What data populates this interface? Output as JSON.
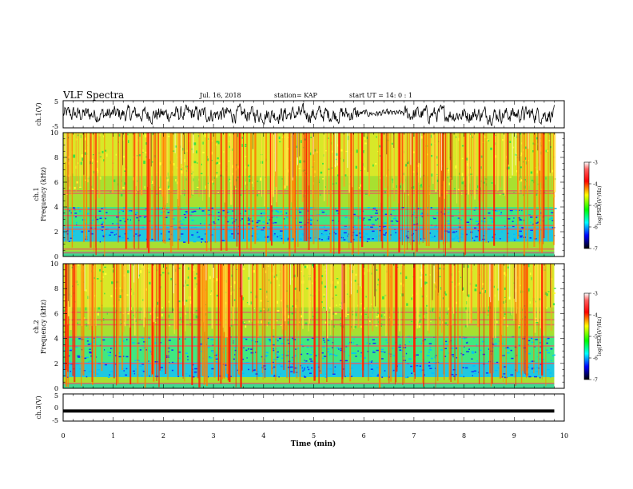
{
  "header": {
    "title": "VLF Spectra",
    "date": "Jul. 16, 2018",
    "station": "station= KAP",
    "start": "start UT =   14: 0  : 1"
  },
  "chart_data": [
    {
      "type": "line",
      "panel": "ch1-waveform",
      "ylabel": "ch.1(V)",
      "ylim": [
        -5,
        5
      ],
      "yticks": [
        "5",
        "-5"
      ],
      "xlim": [
        0,
        10
      ],
      "x_end": 9.8,
      "description_level": "noisy waveform roughly between -3 and 3 V, quieter near 6 min"
    },
    {
      "type": "heatmap",
      "panel": "ch1-spectrogram",
      "ylabel": "ch.1\nFrequency (kHz)",
      "ylabel_line1": "ch.1",
      "ylabel_line2": "Frequency (kHz)",
      "ylim": [
        0,
        10
      ],
      "yticks": [
        "0",
        "2",
        "4",
        "6",
        "8",
        "10"
      ],
      "xlim": [
        0,
        10
      ],
      "x_end": 9.8,
      "colorbar": {
        "label": "log(PSD)(V²/Hz)",
        "range": [
          -7,
          -3
        ],
        "ticks": [
          "-3",
          "-4",
          "-5",
          "-6",
          "-7"
        ],
        "colors": [
          "#ffffff",
          "#ff0000",
          "#ffff00",
          "#00ff00",
          "#00ffff",
          "#0000ff",
          "#000000"
        ]
      },
      "bands_khz": [
        0.3,
        0.6,
        2.2,
        2.5,
        3.3,
        3.8,
        5.1,
        5.3
      ],
      "lowpower_band_khz": [
        1.2,
        4.0
      ]
    },
    {
      "type": "heatmap",
      "panel": "ch2-spectrogram",
      "ylabel_line1": "ch.2",
      "ylabel_line2": "Frequency (kHz)",
      "ylim": [
        0,
        10
      ],
      "yticks": [
        "0",
        "2",
        "4",
        "6",
        "8",
        "10"
      ],
      "xlim": [
        0,
        10
      ],
      "x_end": 9.8,
      "colorbar": {
        "label": "log(PSD)(V²/Hz)",
        "range": [
          -7,
          -3
        ],
        "ticks": [
          "-3",
          "-4",
          "-5",
          "-6",
          "-7"
        ]
      },
      "bands_khz": [
        0.4,
        2.0,
        3.4,
        4.1,
        5.1,
        5.5,
        6.1
      ],
      "lowpower_band_khz": [
        0.9,
        4.2
      ]
    },
    {
      "type": "line",
      "panel": "ch3-waveform",
      "ylabel": "ch.3(V)",
      "ylim": [
        -5,
        5
      ],
      "yticks": [
        "5",
        "0",
        "-5"
      ],
      "xlim": [
        0,
        10
      ],
      "x_end": 9.8,
      "constant_value": -1.3
    },
    {
      "type": "axis",
      "xlabel": "Time (min)",
      "xticks": [
        "0",
        "1",
        "2",
        "3",
        "4",
        "5",
        "6",
        "7",
        "8",
        "9",
        "10"
      ]
    }
  ]
}
